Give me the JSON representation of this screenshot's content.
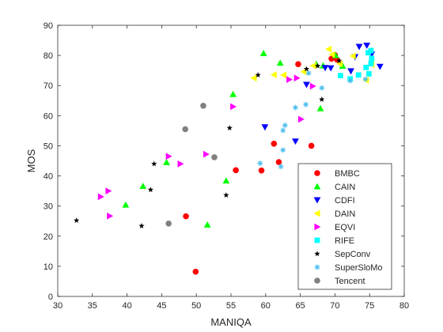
{
  "chart_data": {
    "type": "scatter",
    "title": "",
    "xlabel": "MANIQA",
    "ylabel": "MOS",
    "xlim": [
      30,
      80
    ],
    "ylim": [
      0,
      90
    ],
    "xticks": [
      30,
      35,
      40,
      45,
      50,
      55,
      60,
      65,
      70,
      75,
      80
    ],
    "yticks": [
      0,
      10,
      20,
      30,
      40,
      50,
      60,
      70,
      80,
      90
    ],
    "grid": false,
    "legend_position": "bottom-right",
    "series": [
      {
        "name": "BMBC",
        "marker": "circle",
        "color": "#ff0000",
        "points": [
          [
            49.9,
            8.2
          ],
          [
            48.5,
            26.6
          ],
          [
            55.7,
            41.9
          ],
          [
            59.4,
            41.8
          ],
          [
            61.9,
            44.6
          ],
          [
            61.2,
            50.7
          ],
          [
            66.6,
            50.0
          ],
          [
            64.7,
            77.1
          ],
          [
            69.5,
            78.9
          ],
          [
            70.3,
            78.6
          ],
          [
            70.0,
            80.1
          ]
        ]
      },
      {
        "name": "CAIN",
        "marker": "triangle-up",
        "color": "#00ff00",
        "points": [
          [
            51.6,
            23.8
          ],
          [
            39.8,
            30.4
          ],
          [
            42.3,
            36.6
          ],
          [
            45.7,
            44.5
          ],
          [
            54.3,
            38.4
          ],
          [
            55.3,
            67.1
          ],
          [
            59.7,
            80.7
          ],
          [
            62.1,
            77.5
          ],
          [
            67.3,
            77.1
          ],
          [
            67.9,
            62.4
          ],
          [
            68.3,
            76.6
          ],
          [
            70.1,
            80.0
          ],
          [
            71.1,
            76.5
          ]
        ]
      },
      {
        "name": "CDFI",
        "marker": "triangle-down",
        "color": "#0000ff",
        "points": [
          [
            59.9,
            56.2
          ],
          [
            64.3,
            51.5
          ],
          [
            65.9,
            70.3
          ],
          [
            68.6,
            75.9
          ],
          [
            69.4,
            75.8
          ],
          [
            72.3,
            74.8
          ],
          [
            72.9,
            79.5
          ],
          [
            74.6,
            83.3
          ],
          [
            73.5,
            82.9
          ],
          [
            75.3,
            80.4
          ],
          [
            76.5,
            76.3
          ]
        ]
      },
      {
        "name": "DAIN",
        "marker": "triangle-left",
        "color": "#ffff00",
        "points": [
          [
            58.3,
            72.5
          ],
          [
            61.2,
            73.6
          ],
          [
            62.6,
            73.5
          ],
          [
            65.5,
            74.6
          ],
          [
            66.9,
            76.6
          ],
          [
            69.1,
            82.1
          ],
          [
            69.6,
            80.3
          ],
          [
            70.7,
            77.2
          ],
          [
            72.6,
            79.8
          ],
          [
            74.5,
            71.8
          ],
          [
            75.3,
            77.0
          ]
        ]
      },
      {
        "name": "EQVI",
        "marker": "triangle-right",
        "color": "#ff00ff",
        "points": [
          [
            36.2,
            33.1
          ],
          [
            37.3,
            35.0
          ],
          [
            37.5,
            26.7
          ],
          [
            46.0,
            46.5
          ],
          [
            47.7,
            44.0
          ],
          [
            51.4,
            47.2
          ],
          [
            55.3,
            63.0
          ],
          [
            63.4,
            72.0
          ],
          [
            64.5,
            72.5
          ],
          [
            65.1,
            58.8
          ],
          [
            66.8,
            69.8
          ]
        ]
      },
      {
        "name": "RIFE",
        "marker": "square",
        "color": "#00ffff",
        "points": [
          [
            70.8,
            73.3
          ],
          [
            72.2,
            72.2
          ],
          [
            73.4,
            73.5
          ],
          [
            74.5,
            76.0
          ],
          [
            74.9,
            73.9
          ],
          [
            75.2,
            77.3
          ],
          [
            75.2,
            81.6
          ],
          [
            75.3,
            79.0
          ],
          [
            74.8,
            80.9
          ]
        ]
      },
      {
        "name": "SepConv",
        "marker": "star",
        "color": "#000000",
        "points": [
          [
            32.7,
            25.2
          ],
          [
            42.1,
            23.4
          ],
          [
            43.4,
            35.4
          ],
          [
            43.9,
            44.0
          ],
          [
            54.3,
            33.6
          ],
          [
            54.8,
            55.9
          ],
          [
            58.9,
            73.5
          ],
          [
            65.9,
            75.5
          ],
          [
            67.5,
            76.5
          ],
          [
            68.1,
            65.4
          ],
          [
            70.6,
            78.2
          ]
        ]
      },
      {
        "name": "SuperSloMo",
        "marker": "asterisk",
        "color": "#4dbeee",
        "points": [
          [
            59.2,
            44.2
          ],
          [
            62.2,
            43.1
          ],
          [
            62.5,
            48.6
          ],
          [
            62.5,
            55.1
          ],
          [
            62.8,
            56.8
          ],
          [
            64.3,
            62.7
          ],
          [
            65.8,
            63.7
          ],
          [
            66.2,
            74.1
          ],
          [
            68.1,
            69.2
          ],
          [
            72.2,
            71.6
          ],
          [
            74.4,
            72.1
          ]
        ]
      },
      {
        "name": "Tencent",
        "marker": "circle",
        "color": "#808080",
        "points": [
          [
            46.0,
            24.2
          ],
          [
            48.4,
            55.5
          ],
          [
            51.0,
            63.3
          ],
          [
            52.6,
            46.2
          ]
        ]
      }
    ]
  }
}
